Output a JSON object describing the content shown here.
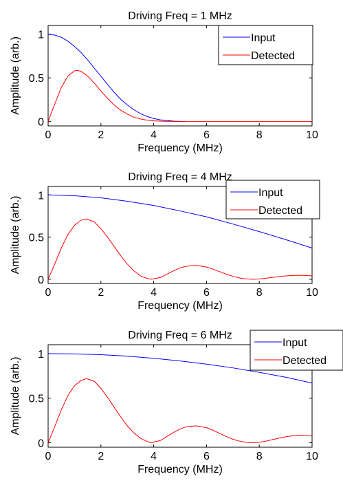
{
  "chart_data": [
    {
      "type": "line",
      "title": "Driving Freq = 1 MHz",
      "xlabel": "Frequency (MHz)",
      "ylabel": "Amplitude (arb.)",
      "xlim": [
        0,
        10
      ],
      "ylim": [
        -0.05,
        1.1
      ],
      "xticks": [
        0,
        2,
        4,
        6,
        8,
        10
      ],
      "yticks": [
        0,
        0.5,
        1
      ],
      "legend": "top-right",
      "grid": false,
      "series": [
        {
          "name": "Input",
          "color": "#0000ff",
          "x": [
            0,
            0.25,
            0.5,
            0.75,
            1,
            1.25,
            1.5,
            1.75,
            2,
            2.25,
            2.5,
            2.75,
            3,
            3.25,
            3.5,
            3.75,
            4,
            4.25,
            4.5,
            4.75,
            5,
            5.2
          ],
          "y": [
            1.0,
            0.99,
            0.965,
            0.92,
            0.86,
            0.79,
            0.705,
            0.61,
            0.52,
            0.425,
            0.335,
            0.255,
            0.19,
            0.135,
            0.09,
            0.058,
            0.035,
            0.02,
            0.011,
            0.005,
            0.002,
            0.0
          ]
        },
        {
          "name": "Detected",
          "color": "#ff0000",
          "x": [
            0,
            0.25,
            0.5,
            0.75,
            1,
            1.1,
            1.25,
            1.5,
            1.75,
            2,
            2.25,
            2.5,
            2.75,
            3,
            3.25,
            3.5,
            3.75,
            4,
            4.5,
            5,
            6,
            7,
            8,
            9,
            10
          ],
          "y": [
            0.0,
            0.2,
            0.39,
            0.52,
            0.58,
            0.585,
            0.575,
            0.52,
            0.44,
            0.35,
            0.265,
            0.19,
            0.13,
            0.085,
            0.05,
            0.03,
            0.016,
            0.008,
            0.002,
            0.0,
            0.0,
            0.0,
            0.0,
            0.0,
            0.0
          ]
        }
      ]
    },
    {
      "type": "line",
      "title": "Driving Freq = 4 MHz",
      "xlabel": "Frequency (MHz)",
      "ylabel": "Amplitude (arb.)",
      "xlim": [
        0,
        10
      ],
      "ylim": [
        -0.05,
        1.1
      ],
      "xticks": [
        0,
        2,
        4,
        6,
        8,
        10
      ],
      "yticks": [
        0,
        0.5,
        1
      ],
      "legend": "top-right",
      "grid": false,
      "series": [
        {
          "name": "Input",
          "color": "#0000ff",
          "x": [
            0,
            1,
            2,
            3,
            4,
            5,
            6,
            7,
            8,
            9,
            10
          ],
          "y": [
            1.0,
            0.99,
            0.965,
            0.925,
            0.875,
            0.81,
            0.74,
            0.655,
            0.565,
            0.47,
            0.37
          ]
        },
        {
          "name": "Detected",
          "color": "#ff0000",
          "x": [
            0,
            0.25,
            0.5,
            0.75,
            1,
            1.25,
            1.45,
            1.75,
            2,
            2.25,
            2.5,
            2.75,
            3,
            3.25,
            3.5,
            3.75,
            3.9,
            4.25,
            4.5,
            4.75,
            5,
            5.25,
            5.6,
            6,
            6.25,
            6.5,
            6.75,
            7,
            7.25,
            7.5,
            7.75,
            8,
            8.25,
            8.5,
            8.75,
            9,
            9.25,
            9.5,
            9.75,
            10
          ],
          "y": [
            0.0,
            0.18,
            0.37,
            0.53,
            0.64,
            0.7,
            0.715,
            0.68,
            0.6,
            0.5,
            0.39,
            0.28,
            0.18,
            0.1,
            0.04,
            0.01,
            0.0,
            0.02,
            0.06,
            0.1,
            0.135,
            0.155,
            0.165,
            0.145,
            0.12,
            0.09,
            0.06,
            0.035,
            0.015,
            0.004,
            0.0,
            0.003,
            0.012,
            0.022,
            0.032,
            0.04,
            0.045,
            0.047,
            0.045,
            0.04
          ]
        }
      ]
    },
    {
      "type": "line",
      "title": "Driving Freq = 6 MHz",
      "xlabel": "Frequency (MHz)",
      "ylabel": "Amplitude (arb.)",
      "xlim": [
        0,
        10
      ],
      "ylim": [
        -0.05,
        1.1
      ],
      "xticks": [
        0,
        2,
        4,
        6,
        8,
        10
      ],
      "yticks": [
        0,
        0.5,
        1
      ],
      "legend": "top-right",
      "grid": false,
      "series": [
        {
          "name": "Input",
          "color": "#0000ff",
          "x": [
            0,
            1,
            2,
            3,
            4,
            5,
            6,
            7,
            8,
            9,
            10
          ],
          "y": [
            1.0,
            0.997,
            0.988,
            0.972,
            0.948,
            0.918,
            0.882,
            0.84,
            0.79,
            0.735,
            0.67
          ]
        },
        {
          "name": "Detected",
          "color": "#ff0000",
          "x": [
            0,
            0.25,
            0.5,
            0.75,
            1,
            1.25,
            1.45,
            1.75,
            2,
            2.25,
            2.5,
            2.75,
            3,
            3.25,
            3.5,
            3.75,
            3.9,
            4.25,
            4.5,
            4.75,
            5,
            5.25,
            5.6,
            6,
            6.25,
            6.5,
            6.75,
            7,
            7.25,
            7.5,
            7.75,
            8,
            8.25,
            8.5,
            8.75,
            9,
            9.25,
            9.5,
            9.75,
            10
          ],
          "y": [
            0.0,
            0.18,
            0.37,
            0.53,
            0.64,
            0.7,
            0.72,
            0.69,
            0.61,
            0.51,
            0.4,
            0.29,
            0.19,
            0.11,
            0.05,
            0.015,
            0.0,
            0.025,
            0.07,
            0.115,
            0.155,
            0.18,
            0.19,
            0.17,
            0.14,
            0.105,
            0.07,
            0.04,
            0.018,
            0.005,
            0.0,
            0.005,
            0.018,
            0.035,
            0.052,
            0.067,
            0.078,
            0.083,
            0.082,
            0.075
          ]
        }
      ]
    }
  ]
}
